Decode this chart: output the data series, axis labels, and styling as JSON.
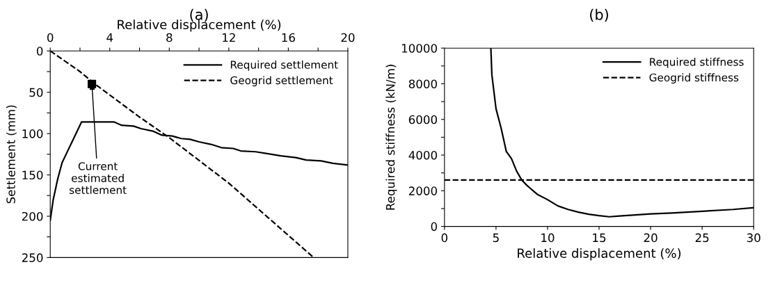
{
  "chart_data": [
    {
      "type": "line",
      "title": "(a)",
      "xlabel": "Relative displacement (%)",
      "ylabel": "Settlement (mm)",
      "xlim": [
        0,
        20
      ],
      "xticks": [
        0,
        {
          "value": 2,
          "label": null
        },
        4,
        {
          "value": 6,
          "label": null
        },
        8,
        {
          "value": 10,
          "label": null
        },
        12,
        {
          "value": 14,
          "label": null
        },
        16,
        {
          "value": 18,
          "label": null
        },
        20
      ],
      "ylim": [
        250,
        0
      ],
      "yticks": [
        0,
        {
          "value": 25,
          "label": null
        },
        50,
        {
          "value": 75,
          "label": null
        },
        100,
        {
          "value": 125,
          "label": null
        },
        150,
        {
          "value": 175,
          "label": null
        },
        200,
        {
          "value": 225,
          "label": null
        },
        250
      ],
      "grid": false,
      "legend": "top right",
      "series": [
        {
          "name": "Required settlement",
          "color": "#000000",
          "line_style": "solid",
          "x": [
            0,
            0.2,
            0.5,
            0.8,
            1.2,
            1.6,
            2.1,
            4.3,
            4.8,
            5.6,
            6.1,
            6.9,
            7.5,
            8.2,
            8.8,
            9.4,
            10,
            10.8,
            11.5,
            12.3,
            12.8,
            13.8,
            14.5,
            15.5,
            16.5,
            17.2,
            18.2,
            19,
            20
          ],
          "values": [
            205,
            180,
            155,
            135,
            120,
            105,
            86,
            86,
            90,
            91,
            94,
            97,
            102,
            103,
            106,
            107,
            110,
            113,
            117,
            118,
            121,
            122,
            124,
            127,
            129,
            132,
            133,
            136,
            138
          ]
        },
        {
          "name": "Geogrid settlement",
          "color": "#000000",
          "line_style": "dashed",
          "x": [
            0,
            2,
            3,
            6,
            8,
            12,
            17.7
          ],
          "values": [
            0,
            25,
            40,
            80,
            105,
            160,
            250
          ]
        },
        {
          "type": "scatter",
          "color": "#000000",
          "marker": "square",
          "x": [
            2.8
          ],
          "values": [
            40
          ]
        }
      ],
      "annotations": [
        {
          "text": "Current\nestimated\nsettlement",
          "x": 2.8,
          "y": 40
        }
      ]
    },
    {
      "type": "line",
      "title": "(b)",
      "xlabel": "Relative displacement (%)",
      "ylabel": "Required stiffness (kN/m)",
      "xlim": [
        0,
        30
      ],
      "xticks": [
        0,
        5,
        10,
        15,
        20,
        25,
        30
      ],
      "ylim": [
        0,
        10000
      ],
      "yticks": [
        0,
        {
          "value": 1000,
          "label": null
        },
        2000,
        {
          "value": 3000,
          "label": null
        },
        4000,
        {
          "value": 5000,
          "label": null
        },
        6000,
        {
          "value": 7000,
          "label": null
        },
        8000,
        {
          "value": 9000,
          "label": null
        },
        10000
      ],
      "grid": false,
      "legend": "top right",
      "series": [
        {
          "name": "Required stiffness",
          "color": "#000000",
          "line_style": "solid",
          "x": [
            4.5,
            4.6,
            5,
            5.5,
            6,
            6.5,
            7,
            7.5,
            8,
            9,
            10,
            11,
            12,
            13,
            14,
            15,
            16,
            17,
            18,
            20,
            22,
            25,
            28,
            30
          ],
          "values": [
            10000,
            8500,
            6600,
            5500,
            4200,
            3800,
            3100,
            2600,
            2300,
            1800,
            1500,
            1150,
            950,
            800,
            680,
            600,
            540,
            580,
            620,
            700,
            750,
            850,
            950,
            1050
          ]
        },
        {
          "name": "Geogrid stiffness",
          "color": "#000000",
          "line_style": "dashed",
          "x": [
            0,
            30
          ],
          "values": [
            2600,
            2600
          ]
        }
      ]
    }
  ]
}
